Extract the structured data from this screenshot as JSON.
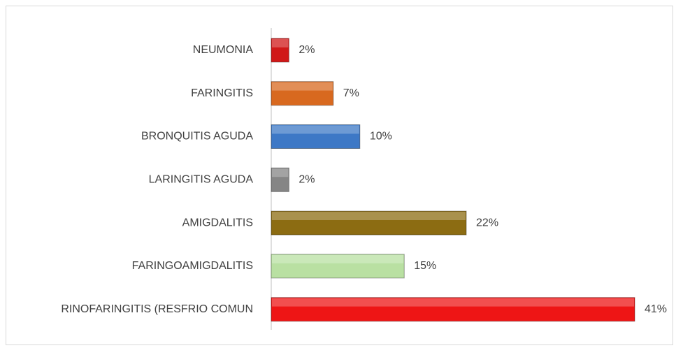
{
  "chart_data": {
    "type": "bar",
    "orientation": "horizontal",
    "categories": [
      "NEUMONIA",
      "FARINGITIS",
      "BRONQUITIS AGUDA",
      "LARINGITIS AGUDA",
      "AMIGDALITIS",
      "FARINGOAMIGDALITIS",
      "RINOFARINGITIS (RESFRIO COMUN"
    ],
    "values": [
      2,
      7,
      10,
      2,
      22,
      15,
      41
    ],
    "value_labels": [
      "2%",
      "7%",
      "10%",
      "2%",
      "22%",
      "15%",
      "41%"
    ],
    "colors": [
      "#d01818",
      "#d8691f",
      "#3d78c6",
      "#858585",
      "#8c6c12",
      "#b9e0a2",
      "#ee1515"
    ]
  }
}
